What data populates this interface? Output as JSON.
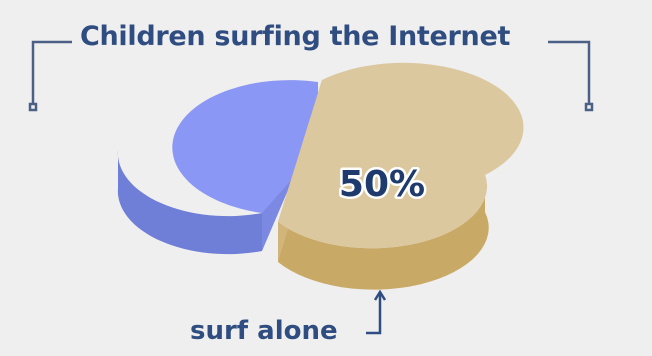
{
  "chart_data": {
    "type": "pie",
    "title": "Children surfing the Internet",
    "slices": [
      {
        "label": "surf alone",
        "value": 50,
        "value_label": "50%",
        "color": "#dbc89f",
        "side_color": "#c9a966"
      },
      {
        "label": "",
        "value": 50,
        "value_label": "",
        "color": "#8b97f4",
        "side_color": "#6f7ed6"
      }
    ],
    "legend": "none",
    "style": "3d-exploded"
  }
}
